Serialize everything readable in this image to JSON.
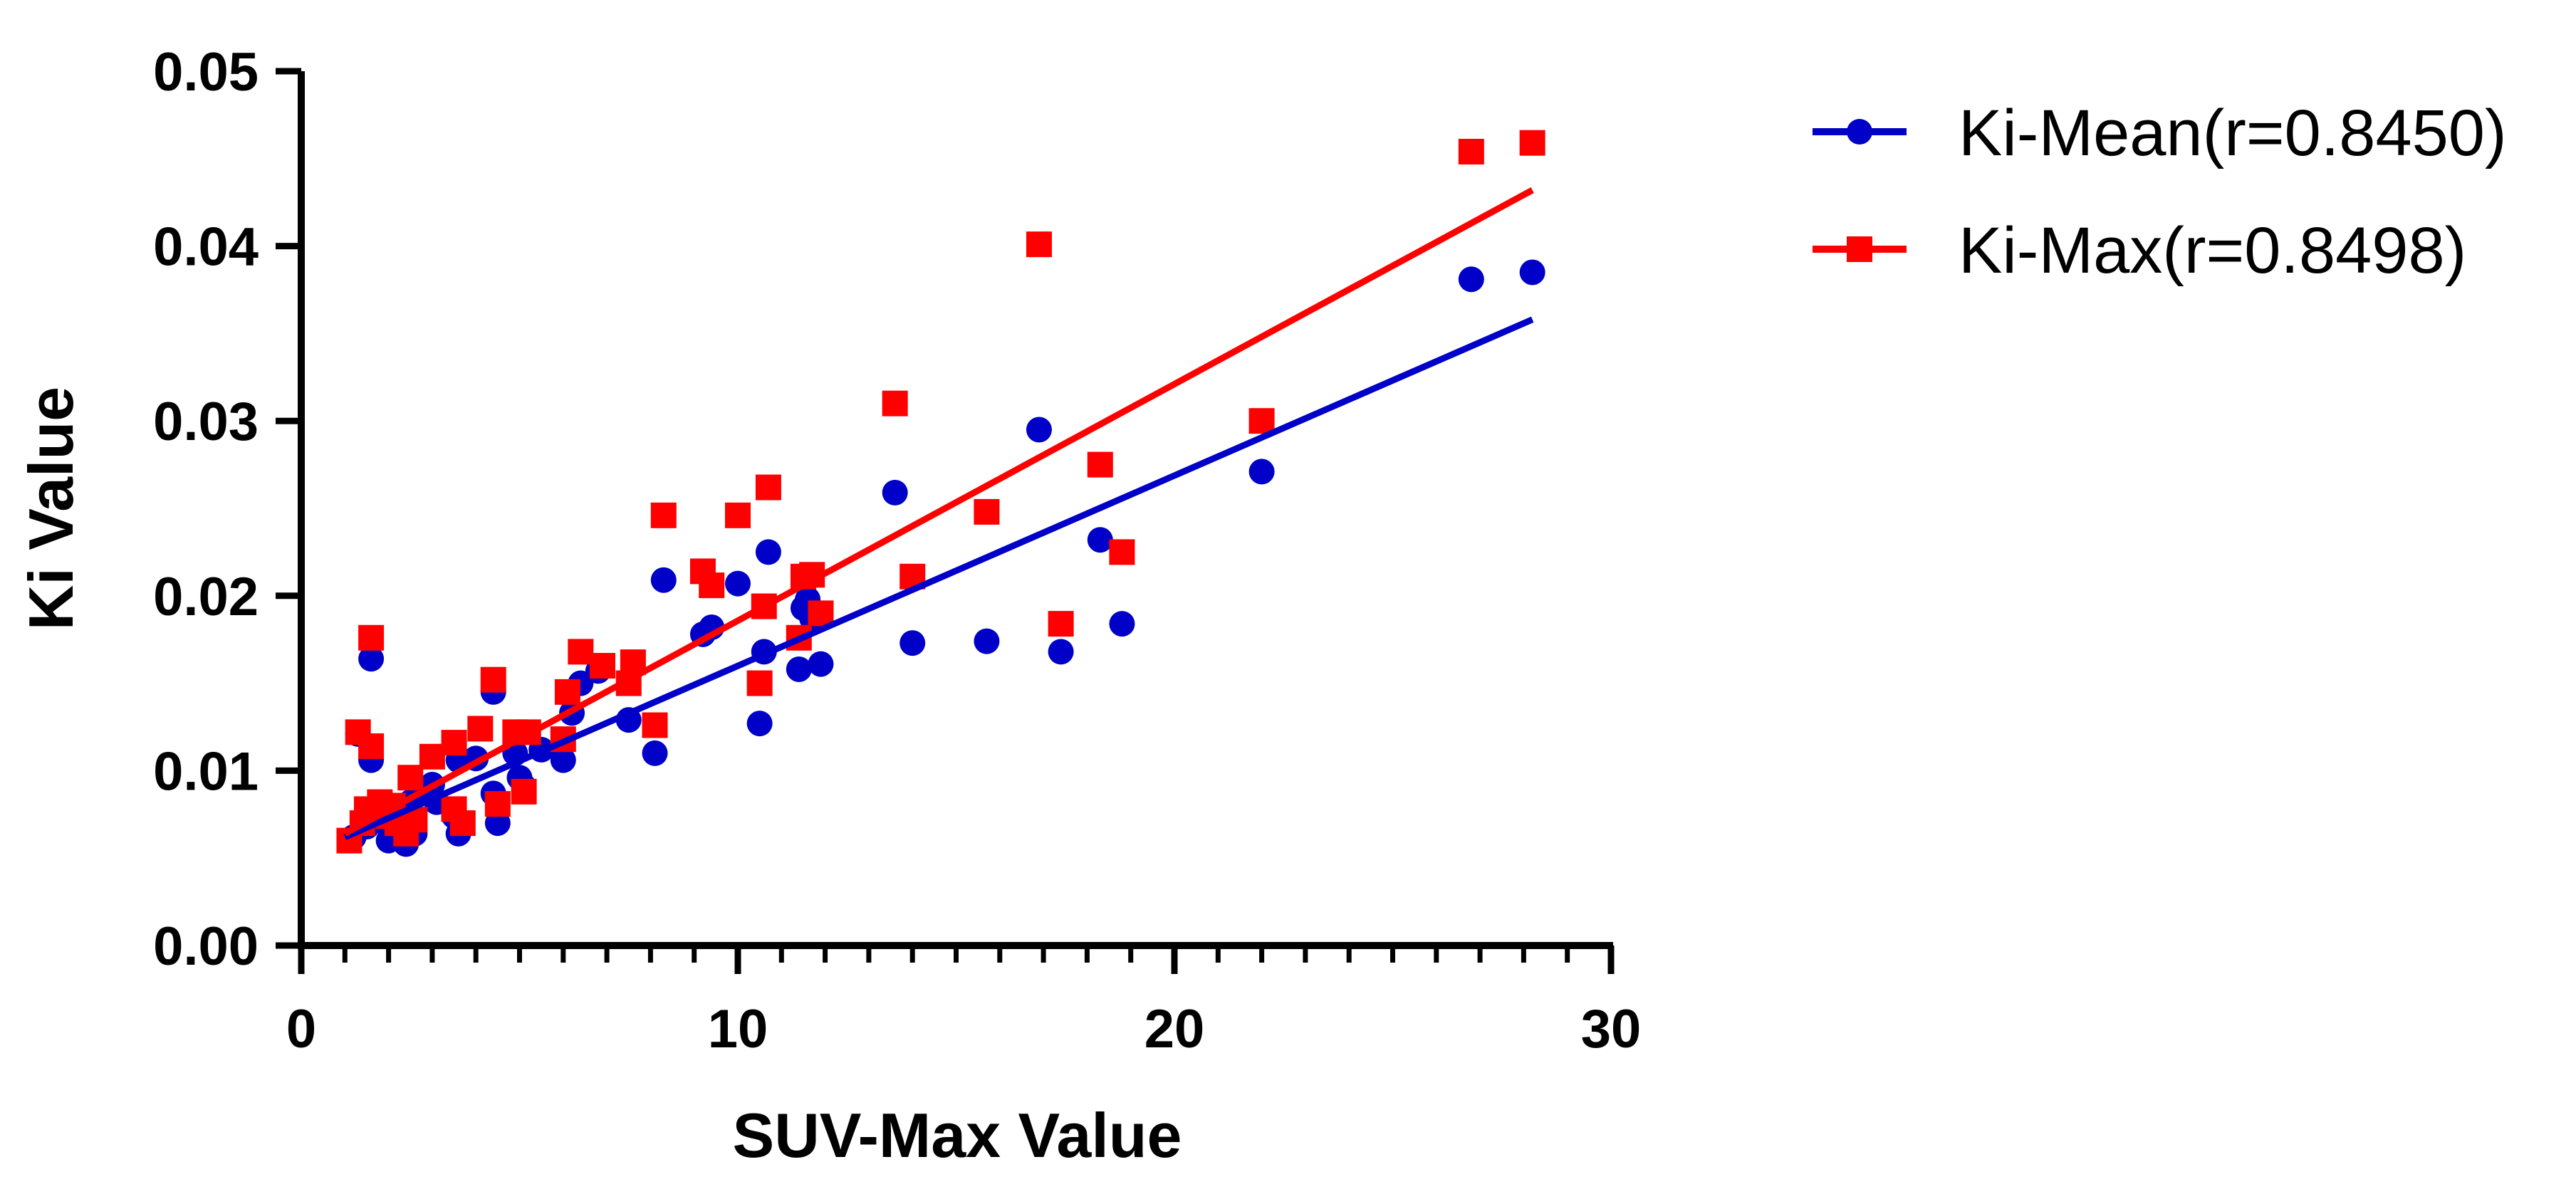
{
  "chart_data": {
    "type": "scatter",
    "title": "",
    "xlabel": "SUV-Max Value",
    "ylabel": "Ki Value",
    "xlim": [
      0,
      30
    ],
    "ylim": [
      0,
      0.05
    ],
    "x_ticks": [
      0,
      10,
      20,
      30
    ],
    "x_tick_labels": [
      "0",
      "10",
      "20",
      "30"
    ],
    "y_ticks": [
      0,
      0.01,
      0.02,
      0.03,
      0.04,
      0.05
    ],
    "y_tick_labels": [
      "0.00",
      "0.01",
      "0.02",
      "0.03",
      "0.04",
      "0.05"
    ],
    "grid": false,
    "legend_position": "top-right",
    "series": [
      {
        "name": "Ki-Mean(r=0.8450)",
        "color": "#0000c8",
        "marker": "circle",
        "fit": {
          "type": "linear",
          "x": [
            1.0,
            28.2
          ],
          "y": [
            0.0062,
            0.0358
          ]
        },
        "points": [
          [
            1.2,
            0.0062
          ],
          [
            1.3,
            0.0121
          ],
          [
            1.5,
            0.0068
          ],
          [
            1.6,
            0.0164
          ],
          [
            1.6,
            0.0106
          ],
          [
            1.8,
            0.0072
          ],
          [
            2.0,
            0.0068
          ],
          [
            2.0,
            0.006
          ],
          [
            2.1,
            0.0075
          ],
          [
            2.2,
            0.0078
          ],
          [
            2.3,
            0.0065
          ],
          [
            2.4,
            0.0058
          ],
          [
            2.4,
            0.007
          ],
          [
            2.5,
            0.0082
          ],
          [
            2.6,
            0.0064
          ],
          [
            2.8,
            0.0088
          ],
          [
            3.0,
            0.0092
          ],
          [
            3.1,
            0.0082
          ],
          [
            3.5,
            0.0074
          ],
          [
            3.6,
            0.0064
          ],
          [
            3.6,
            0.0106
          ],
          [
            4.0,
            0.0107
          ],
          [
            4.4,
            0.0145
          ],
          [
            4.4,
            0.0087
          ],
          [
            4.5,
            0.007
          ],
          [
            4.9,
            0.011
          ],
          [
            5.0,
            0.0096
          ],
          [
            5.1,
            0.0091
          ],
          [
            5.5,
            0.0112
          ],
          [
            6.0,
            0.0106
          ],
          [
            6.2,
            0.0133
          ],
          [
            6.4,
            0.015
          ],
          [
            6.8,
            0.0157
          ],
          [
            7.5,
            0.0129
          ],
          [
            8.1,
            0.011
          ],
          [
            8.3,
            0.0209
          ],
          [
            9.2,
            0.0178
          ],
          [
            9.4,
            0.0182
          ],
          [
            10.0,
            0.0207
          ],
          [
            10.5,
            0.0127
          ],
          [
            10.6,
            0.0168
          ],
          [
            10.7,
            0.0225
          ],
          [
            11.4,
            0.0158
          ],
          [
            11.5,
            0.0193
          ],
          [
            11.6,
            0.0198
          ],
          [
            11.7,
            0.0187
          ],
          [
            11.9,
            0.0161
          ],
          [
            13.6,
            0.0259
          ],
          [
            14.0,
            0.0173
          ],
          [
            15.7,
            0.0174
          ],
          [
            16.9,
            0.0295
          ],
          [
            17.4,
            0.0168
          ],
          [
            18.3,
            0.0232
          ],
          [
            18.8,
            0.0184
          ],
          [
            22.0,
            0.0271
          ],
          [
            26.8,
            0.0381
          ],
          [
            28.2,
            0.0385
          ]
        ]
      },
      {
        "name": "Ki-Max(r=0.8498)",
        "color": "#ff0000",
        "marker": "square",
        "fit": {
          "type": "linear",
          "x": [
            1.0,
            28.2
          ],
          "y": [
            0.0064,
            0.0432
          ]
        },
        "points": [
          [
            1.1,
            0.006
          ],
          [
            1.3,
            0.0122
          ],
          [
            1.4,
            0.007
          ],
          [
            1.5,
            0.0078
          ],
          [
            1.6,
            0.0176
          ],
          [
            1.6,
            0.0114
          ],
          [
            1.8,
            0.0082
          ],
          [
            2.0,
            0.0074
          ],
          [
            2.1,
            0.008
          ],
          [
            2.2,
            0.007
          ],
          [
            2.4,
            0.0064
          ],
          [
            2.5,
            0.0096
          ],
          [
            2.6,
            0.0072
          ],
          [
            3.0,
            0.0108
          ],
          [
            3.5,
            0.0116
          ],
          [
            3.5,
            0.0078
          ],
          [
            3.7,
            0.007
          ],
          [
            4.1,
            0.0124
          ],
          [
            4.4,
            0.0152
          ],
          [
            4.5,
            0.0081
          ],
          [
            4.9,
            0.0122
          ],
          [
            5.1,
            0.0088
          ],
          [
            5.2,
            0.0122
          ],
          [
            6.0,
            0.0118
          ],
          [
            6.1,
            0.0145
          ],
          [
            6.4,
            0.0168
          ],
          [
            6.9,
            0.016
          ],
          [
            7.5,
            0.015
          ],
          [
            7.6,
            0.0162
          ],
          [
            8.1,
            0.0126
          ],
          [
            8.3,
            0.0246
          ],
          [
            9.2,
            0.0214
          ],
          [
            9.4,
            0.0206
          ],
          [
            10.0,
            0.0246
          ],
          [
            10.5,
            0.015
          ],
          [
            10.6,
            0.0194
          ],
          [
            10.7,
            0.0262
          ],
          [
            11.4,
            0.0176
          ],
          [
            11.5,
            0.0211
          ],
          [
            11.7,
            0.0212
          ],
          [
            11.9,
            0.019
          ],
          [
            13.6,
            0.031
          ],
          [
            14.0,
            0.0211
          ],
          [
            15.7,
            0.0248
          ],
          [
            16.9,
            0.0401
          ],
          [
            17.4,
            0.0184
          ],
          [
            18.3,
            0.0275
          ],
          [
            18.8,
            0.0225
          ],
          [
            22.0,
            0.03
          ],
          [
            26.8,
            0.0454
          ],
          [
            28.2,
            0.0459
          ]
        ]
      }
    ]
  }
}
